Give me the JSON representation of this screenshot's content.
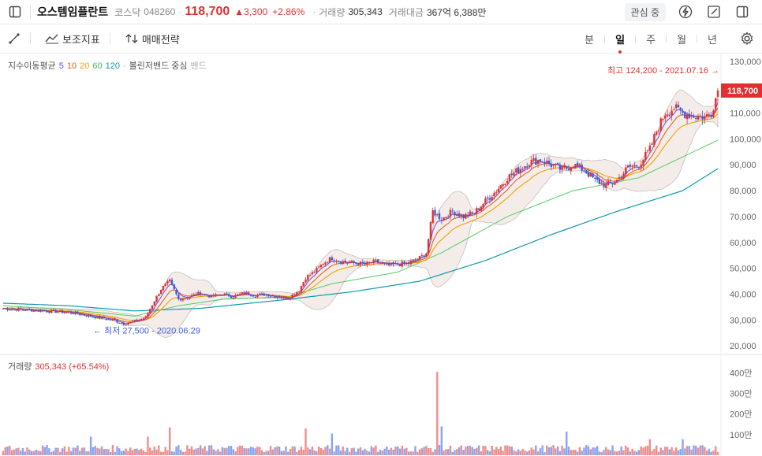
{
  "header": {
    "name": "오스템임플란트",
    "market": "코스닥",
    "code": "048260",
    "price": "118,700",
    "change": "▲3,300",
    "change_pct": "+2.86%",
    "volume_label": "거래량",
    "volume": "305,343",
    "amount_label": "거래대금",
    "amount": "367억 6,388만",
    "watch_label": "관심 중"
  },
  "toolbar": {
    "indicators_label": "보조지표",
    "strategy_label": "매매전략",
    "periods": [
      "분",
      "일",
      "주",
      "월",
      "년"
    ]
  },
  "legend": {
    "ma_label": "지수이동평균",
    "ma_periods": [
      "5",
      "10",
      "20",
      "60",
      "120"
    ],
    "bb_label": "볼린저밴드 중심",
    "bb_band": "밴드"
  },
  "annotations": {
    "high": "최고 124,200 - 2021.07.16 →",
    "low": "← 최저 27,500 - 2020.06.29",
    "current_price_tag": "118,700"
  },
  "volume_panel": {
    "label": "거래량",
    "value": "305,343 (+65.54%)"
  },
  "colors": {
    "up": "#e03131",
    "down": "#3b5bdb",
    "ma5": "#7048e8",
    "ma10": "#e8590c",
    "ma20": "#f59f00",
    "ma60": "#51cf66",
    "ma120": "#1098ad",
    "band_fill": "#f3ece8",
    "band_line": "#c9bfb8"
  },
  "chart_data": {
    "type": "candlestick",
    "y_ticks": [
      "130,000",
      "120,000",
      "110,000",
      "100,000",
      "90,000",
      "80,000",
      "70,000",
      "60,000",
      "50,000",
      "40,000",
      "30,000",
      "20,000"
    ],
    "ylim": [
      17000,
      133000
    ],
    "volume_ticks": [
      "400만",
      "300만",
      "200만",
      "100만"
    ],
    "volume_lim": [
      0,
      4400000
    ],
    "price_trend": [
      [
        0,
        34500
      ],
      [
        10,
        34000
      ],
      [
        20,
        33500
      ],
      [
        30,
        33000
      ],
      [
        40,
        31500
      ],
      [
        50,
        30000
      ],
      [
        55,
        28500
      ],
      [
        60,
        29500
      ],
      [
        65,
        31000
      ],
      [
        68,
        36000
      ],
      [
        72,
        42000
      ],
      [
        76,
        45000
      ],
      [
        80,
        38000
      ],
      [
        85,
        39000
      ],
      [
        90,
        40500
      ],
      [
        95,
        39000
      ],
      [
        100,
        40000
      ],
      [
        105,
        39000
      ],
      [
        110,
        40500
      ],
      [
        115,
        39500
      ],
      [
        120,
        40000
      ],
      [
        125,
        39000
      ],
      [
        130,
        38500
      ],
      [
        135,
        41500
      ],
      [
        138,
        46500
      ],
      [
        142,
        48500
      ],
      [
        146,
        52000
      ],
      [
        150,
        54000
      ],
      [
        155,
        52500
      ],
      [
        160,
        52000
      ],
      [
        165,
        51500
      ],
      [
        170,
        52500
      ],
      [
        175,
        51000
      ],
      [
        180,
        51500
      ],
      [
        185,
        52000
      ],
      [
        190,
        54000
      ],
      [
        193,
        56000
      ],
      [
        196,
        72000
      ],
      [
        200,
        69000
      ],
      [
        205,
        72000
      ],
      [
        210,
        70000
      ],
      [
        215,
        71500
      ],
      [
        220,
        76000
      ],
      [
        225,
        80000
      ],
      [
        230,
        85000
      ],
      [
        235,
        88000
      ],
      [
        240,
        91000
      ],
      [
        245,
        92000
      ],
      [
        250,
        90000
      ],
      [
        255,
        88000
      ],
      [
        260,
        90000
      ],
      [
        265,
        88000
      ],
      [
        270,
        84000
      ],
      [
        275,
        82000
      ],
      [
        280,
        84000
      ],
      [
        285,
        89000
      ],
      [
        290,
        90000
      ],
      [
        295,
        96000
      ],
      [
        298,
        103000
      ],
      [
        302,
        110000
      ],
      [
        306,
        112000
      ],
      [
        310,
        110000
      ],
      [
        315,
        109000
      ],
      [
        320,
        108500
      ],
      [
        323,
        110000
      ],
      [
        326,
        118700
      ]
    ],
    "ma60_trend": [
      [
        0,
        35500
      ],
      [
        30,
        34000
      ],
      [
        60,
        31500
      ],
      [
        80,
        35500
      ],
      [
        100,
        38000
      ],
      [
        130,
        39000
      ],
      [
        150,
        44000
      ],
      [
        180,
        48500
      ],
      [
        200,
        56000
      ],
      [
        230,
        70000
      ],
      [
        260,
        80000
      ],
      [
        290,
        85000
      ],
      [
        326,
        99500
      ]
    ],
    "ma120_trend": [
      [
        0,
        36500
      ],
      [
        30,
        35500
      ],
      [
        60,
        33500
      ],
      [
        90,
        34500
      ],
      [
        130,
        38000
      ],
      [
        160,
        41000
      ],
      [
        190,
        45000
      ],
      [
        220,
        53000
      ],
      [
        250,
        63000
      ],
      [
        280,
        72000
      ],
      [
        310,
        80000
      ],
      [
        326,
        88500
      ]
    ],
    "volume_spikes": [
      [
        198,
        4050000
      ],
      [
        200,
        1400000
      ],
      [
        138,
        1300000
      ],
      [
        76,
        1350000
      ],
      [
        150,
        1050000
      ],
      [
        66,
        900000
      ],
      [
        295,
        780000
      ],
      [
        310,
        780000
      ],
      [
        257,
        1150000
      ],
      [
        40,
        900000
      ],
      [
        150,
        1050000
      ]
    ]
  }
}
